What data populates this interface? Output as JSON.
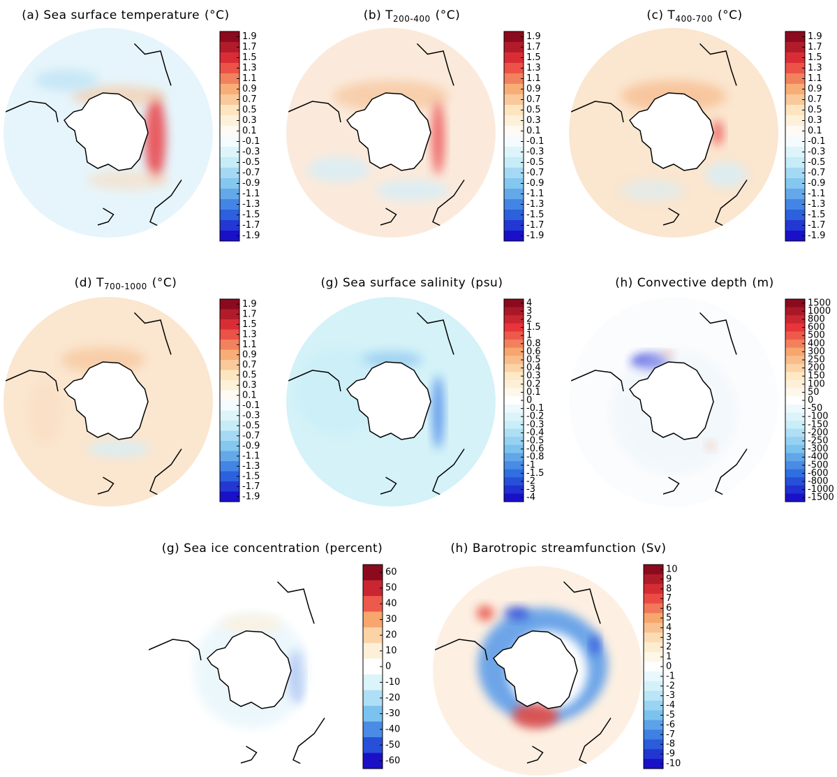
{
  "panels": [
    {
      "title": "(a) Sea surface temperature",
      "units": "(°C)",
      "colorbar_labels": [
        1.9,
        1.7,
        1.5,
        1.3,
        1.1,
        0.9,
        0.7,
        0.5,
        0.3,
        0.1,
        -0.1,
        -0.3,
        -0.5,
        -0.7,
        -0.9,
        -1.1,
        -1.3,
        -1.5,
        -1.7,
        -1.9
      ]
    },
    {
      "title": "(b) T",
      "subscript": "200-400",
      "units": "(°C)",
      "colorbar_labels": [
        1.9,
        1.7,
        1.5,
        1.3,
        1.1,
        0.9,
        0.7,
        0.5,
        0.3,
        0.1,
        -0.1,
        -0.3,
        -0.5,
        -0.7,
        -0.9,
        -1.1,
        -1.3,
        -1.5,
        -1.7,
        -1.9
      ]
    },
    {
      "title": "(c) T",
      "subscript": "400-700",
      "units": "(°C)",
      "colorbar_labels": [
        1.9,
        1.7,
        1.5,
        1.3,
        1.1,
        0.9,
        0.7,
        0.5,
        0.3,
        0.1,
        -0.1,
        -0.3,
        -0.5,
        -0.7,
        -0.9,
        -1.1,
        -1.3,
        -1.5,
        -1.7,
        -1.9
      ]
    },
    {
      "title": "(d) T",
      "subscript": "700-1000",
      "units": "(°C)",
      "colorbar_labels": [
        1.9,
        1.7,
        1.5,
        1.3,
        1.1,
        0.9,
        0.7,
        0.5,
        0.3,
        0.1,
        -0.1,
        -0.3,
        -0.5,
        -0.7,
        -0.9,
        -1.1,
        -1.3,
        -1.5,
        -1.7,
        -1.9
      ]
    },
    {
      "title": "(g) Sea surface salinity",
      "units": "(psu)",
      "colorbar_labels": [
        4,
        3,
        2,
        1.5,
        1,
        0.8,
        0.6,
        0.5,
        0.4,
        0.3,
        0.2,
        0.1,
        0,
        -0.1,
        -0.2,
        -0.3,
        -0.4,
        -0.5,
        -0.6,
        -0.8,
        -1,
        -1.5,
        -2,
        -3,
        -4
      ]
    },
    {
      "title": "(h) Convective depth",
      "units": "(m)",
      "colorbar_labels": [
        1500,
        1000,
        800,
        600,
        500,
        400,
        300,
        250,
        200,
        150,
        100,
        50,
        0,
        -50,
        -100,
        -150,
        -200,
        -250,
        -300,
        -400,
        -500,
        -600,
        -800,
        -1000,
        -1500
      ]
    },
    {
      "title": "(g) Sea ice concentration",
      "units": "(percent)",
      "colorbar_labels": [
        60,
        50,
        40,
        30,
        20,
        10,
        0,
        -10,
        -20,
        -30,
        -40,
        -50,
        -60
      ]
    },
    {
      "title": "(h) Barotropic streamfunction",
      "units": "(Sv)",
      "colorbar_labels": [
        10,
        9,
        8,
        7,
        6,
        5,
        4,
        3,
        2,
        1,
        0,
        -1,
        -2,
        -3,
        -4,
        -5,
        -6,
        -7,
        -8,
        -9,
        -10
      ]
    }
  ]
}
